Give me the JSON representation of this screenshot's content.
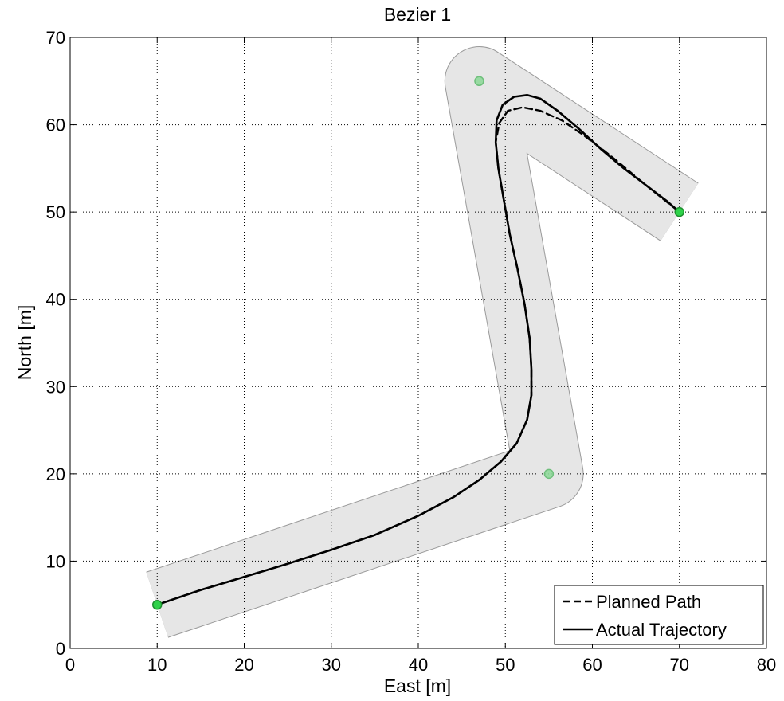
{
  "chart_data": {
    "type": "line",
    "title": "Bezier 1",
    "xlabel": "East [m]",
    "ylabel": "North [m]",
    "xlim": [
      0,
      80
    ],
    "ylim": [
      0,
      70
    ],
    "xticks": [
      0,
      10,
      20,
      30,
      40,
      50,
      60,
      70,
      80
    ],
    "yticks": [
      0,
      10,
      20,
      30,
      40,
      50,
      60,
      70
    ],
    "grid": true,
    "legend_position": "bottom-right",
    "corridor": {
      "waypoints": [
        [
          10,
          5
        ],
        [
          55,
          20
        ],
        [
          47,
          65
        ],
        [
          70,
          50
        ]
      ],
      "half_width_m": 3.9,
      "fill": "#e6e6e6",
      "edge": "#9a9a9a"
    },
    "control_points": [
      [
        10,
        5
      ],
      [
        55,
        20
      ],
      [
        47,
        65
      ],
      [
        70,
        50
      ]
    ],
    "series": [
      {
        "name": "Planned Path",
        "style": "dashed",
        "color": "#000000",
        "points": [
          [
            10.0,
            5.0
          ],
          [
            15.0,
            6.7
          ],
          [
            20.0,
            8.2
          ],
          [
            25.0,
            9.7
          ],
          [
            30.0,
            11.3
          ],
          [
            35.0,
            13.0
          ],
          [
            40.0,
            15.2
          ],
          [
            44.0,
            17.3
          ],
          [
            47.0,
            19.3
          ],
          [
            49.5,
            21.4
          ],
          [
            51.3,
            23.5
          ],
          [
            52.5,
            26.2
          ],
          [
            53.0,
            29.0
          ],
          [
            53.0,
            32.0
          ],
          [
            52.8,
            35.5
          ],
          [
            52.2,
            39.5
          ],
          [
            51.4,
            43.5
          ],
          [
            50.5,
            47.5
          ],
          [
            49.8,
            51.5
          ],
          [
            49.2,
            55.0
          ],
          [
            48.9,
            58.0
          ],
          [
            49.3,
            60.2
          ],
          [
            50.3,
            61.6
          ],
          [
            52.0,
            62.0
          ],
          [
            54.0,
            61.6
          ],
          [
            56.5,
            60.5
          ],
          [
            59.0,
            58.8
          ],
          [
            61.5,
            56.9
          ],
          [
            63.0,
            55.7
          ],
          [
            66.0,
            53.2
          ],
          [
            68.5,
            51.2
          ],
          [
            70.0,
            50.0
          ]
        ]
      },
      {
        "name": "Actual Trajectory",
        "style": "solid",
        "color": "#000000",
        "points": [
          [
            10.0,
            5.0
          ],
          [
            15.0,
            6.7
          ],
          [
            20.0,
            8.2
          ],
          [
            25.0,
            9.7
          ],
          [
            30.0,
            11.3
          ],
          [
            35.0,
            13.0
          ],
          [
            40.0,
            15.2
          ],
          [
            44.0,
            17.3
          ],
          [
            47.0,
            19.3
          ],
          [
            49.5,
            21.4
          ],
          [
            51.3,
            23.5
          ],
          [
            52.5,
            26.2
          ],
          [
            53.0,
            29.0
          ],
          [
            53.0,
            32.0
          ],
          [
            52.8,
            35.5
          ],
          [
            52.2,
            39.5
          ],
          [
            51.4,
            43.5
          ],
          [
            50.5,
            47.5
          ],
          [
            49.8,
            51.5
          ],
          [
            49.2,
            55.0
          ],
          [
            48.9,
            58.0
          ],
          [
            49.0,
            60.5
          ],
          [
            49.7,
            62.3
          ],
          [
            51.0,
            63.2
          ],
          [
            52.5,
            63.4
          ],
          [
            54.0,
            63.0
          ],
          [
            56.0,
            61.6
          ],
          [
            58.5,
            59.5
          ],
          [
            61.0,
            57.2
          ],
          [
            63.5,
            55.1
          ],
          [
            66.0,
            53.2
          ],
          [
            68.5,
            51.3
          ],
          [
            70.0,
            50.0
          ]
        ]
      }
    ]
  }
}
